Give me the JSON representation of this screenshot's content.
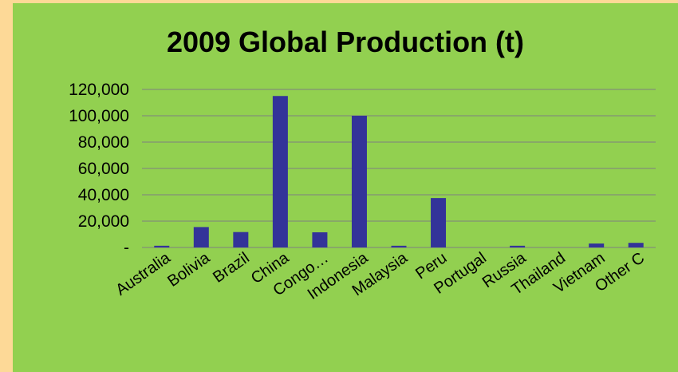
{
  "chart_data": {
    "type": "bar",
    "title": "2009 Global Production (t)",
    "xlabel": "",
    "ylabel": "",
    "categories": [
      "Australia",
      "Bolivia",
      "Brazil",
      "China",
      "Congo…",
      "Indonesia",
      "Malaysia",
      "Peru",
      "Portugal",
      "Russia",
      "Thailand",
      "Vietnam",
      "Other C"
    ],
    "values": [
      1300,
      15500,
      11700,
      115000,
      11500,
      100000,
      1300,
      37500,
      0,
      1300,
      0,
      3000,
      3500
    ],
    "ylim": [
      0,
      120000
    ],
    "yticks": [
      0,
      20000,
      40000,
      60000,
      80000,
      100000,
      120000
    ],
    "ytick_labels": [
      "-",
      "20,000",
      "40,000",
      "60,000",
      "80,000",
      "100,000",
      "120,000"
    ],
    "grid": true,
    "colors": {
      "bar": "#333399",
      "grid": "#7f7f7f",
      "panel": "#92d050",
      "background": "#fdd997"
    }
  }
}
